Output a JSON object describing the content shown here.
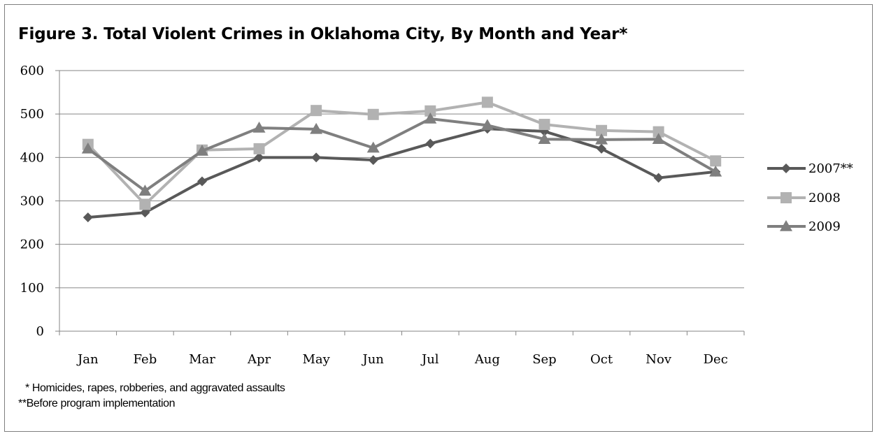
{
  "chart_data": {
    "type": "line",
    "title": "Figure 3. Total Violent Crimes in Oklahoma City, By Month and Year*",
    "xlabel": "",
    "ylabel": "",
    "categories": [
      "Jan",
      "Feb",
      "Mar",
      "Apr",
      "May",
      "Jun",
      "Jul",
      "Aug",
      "Sep",
      "Oct",
      "Nov",
      "Dec"
    ],
    "ylim": [
      0,
      600
    ],
    "yticks": [
      0,
      100,
      200,
      300,
      400,
      500,
      600
    ],
    "grid": true,
    "legend_position": "right",
    "series": [
      {
        "name": "2007**",
        "marker": "diamond",
        "color": "#595959",
        "values": [
          262,
          273,
          345,
          400,
          400,
          394,
          432,
          466,
          460,
          420,
          353,
          367
        ]
      },
      {
        "name": "2008",
        "marker": "square",
        "color": "#b2b2b2",
        "values": [
          430,
          292,
          417,
          420,
          508,
          499,
          507,
          527,
          476,
          462,
          459,
          392
        ]
      },
      {
        "name": "2009",
        "marker": "triangle",
        "color": "#7f7f7f",
        "values": [
          420,
          323,
          415,
          468,
          465,
          422,
          489,
          474,
          442,
          441,
          442,
          367
        ]
      }
    ]
  },
  "footnotes": {
    "line1": " * Homicides, rapes, robberies, and aggravated assaults",
    "line2": "**Before program implementation"
  }
}
